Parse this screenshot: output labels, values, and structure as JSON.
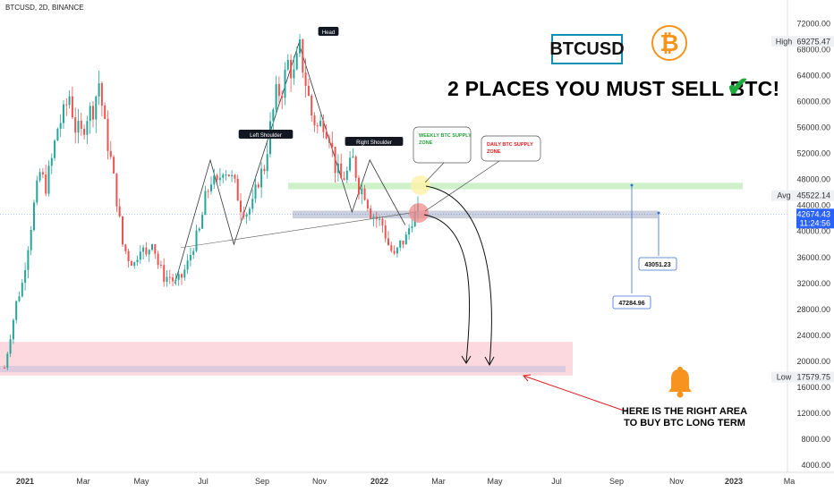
{
  "header": {
    "symbol": "BTCUSD, 2D, BINANCE"
  },
  "badge": {
    "label": "BTCUSD"
  },
  "logo": {
    "glyph": "₿",
    "color": "#f7931a"
  },
  "headline": {
    "text": "2 PLACES YOU MUST SELL BTC!",
    "check": "✔"
  },
  "callout": {
    "line1": "HERE IS THE RIGHT AREA",
    "line2": "TO BUY BTC LONG TERM"
  },
  "chart_data": {
    "type": "candlestick",
    "title": "BTCUSD, 2D, BINANCE",
    "ylim": [
      4000,
      74000
    ],
    "y_ticks": [
      "72000.00",
      "68000.00",
      "64000.00",
      "60000.00",
      "56000.00",
      "52000.00",
      "48000.00",
      "44000.00",
      "40000.00",
      "36000.00",
      "32000.00",
      "28000.00",
      "24000.00",
      "20000.00",
      "16000.00",
      "12000.00",
      "8000.00",
      "4000.00"
    ],
    "x_ticks": [
      "2021",
      "Mar",
      "May",
      "Jul",
      "Sep",
      "Nov",
      "2022",
      "Mar",
      "May",
      "Jul",
      "Sep",
      "Nov",
      "2023",
      "Ma"
    ],
    "price_tags": [
      {
        "label": "High",
        "value": "69275.47"
      },
      {
        "label": "Avg",
        "value": "45522.14"
      },
      {
        "label": "",
        "value": "42674.43",
        "sub": "11:24:56"
      },
      {
        "label": "Low",
        "value": "17579.75"
      }
    ],
    "pattern_labels": [
      "Head",
      "Left Shoulder",
      "Right Shoulder"
    ],
    "annotations": [
      {
        "text": "WEEKLY BTC SUPPLY ZONE",
        "color": "#2a9d3a"
      },
      {
        "text": "DAILY BTC SUPPLY ZONE",
        "color": "#e01b1b"
      }
    ],
    "measurements": [
      "47284.96",
      "43051.23"
    ],
    "zones": [
      {
        "name": "weekly supply",
        "from": 46500,
        "to": 47500,
        "color": "#c9f0c6"
      },
      {
        "name": "daily supply",
        "from": 42000,
        "to": 43200,
        "color": "#c5cbd8"
      },
      {
        "name": "buy zone",
        "from": 17800,
        "to": 23000,
        "color": "#fbd5dc"
      }
    ],
    "path": [
      [
        0,
        19000
      ],
      [
        2,
        24000
      ],
      [
        4,
        29000
      ],
      [
        6,
        32000
      ],
      [
        8,
        38000
      ],
      [
        10,
        44000
      ],
      [
        12,
        49000
      ],
      [
        14,
        47000
      ],
      [
        16,
        51000
      ],
      [
        18,
        56000
      ],
      [
        20,
        58000
      ],
      [
        22,
        61000
      ],
      [
        24,
        56000
      ],
      [
        26,
        55000
      ],
      [
        28,
        58000
      ],
      [
        30,
        59000
      ],
      [
        32,
        63000
      ],
      [
        34,
        56000
      ],
      [
        36,
        51000
      ],
      [
        38,
        45000
      ],
      [
        40,
        38000
      ],
      [
        42,
        36000
      ],
      [
        44,
        35000
      ],
      [
        46,
        38000
      ],
      [
        48,
        36000
      ],
      [
        50,
        39000
      ],
      [
        52,
        35000
      ],
      [
        54,
        33000
      ],
      [
        56,
        33000
      ],
      [
        58,
        32000
      ],
      [
        60,
        33000
      ],
      [
        62,
        35000
      ],
      [
        64,
        38000
      ],
      [
        66,
        40000
      ],
      [
        68,
        45000
      ],
      [
        70,
        48000
      ],
      [
        72,
        47000
      ],
      [
        74,
        50000
      ],
      [
        76,
        49000
      ],
      [
        78,
        47000
      ],
      [
        80,
        44000
      ],
      [
        82,
        43000
      ],
      [
        84,
        44000
      ],
      [
        86,
        48000
      ],
      [
        88,
        50000
      ],
      [
        90,
        56000
      ],
      [
        92,
        61000
      ],
      [
        94,
        62000
      ],
      [
        96,
        66000
      ],
      [
        98,
        64000
      ],
      [
        100,
        68000
      ],
      [
        102,
        63000
      ],
      [
        104,
        58000
      ],
      [
        106,
        56000
      ],
      [
        108,
        57000
      ],
      [
        110,
        55000
      ],
      [
        112,
        50000
      ],
      [
        114,
        48000
      ],
      [
        116,
        49000
      ],
      [
        118,
        51000
      ],
      [
        120,
        47000
      ],
      [
        122,
        46000
      ],
      [
        124,
        43000
      ],
      [
        126,
        42000
      ],
      [
        128,
        41000
      ],
      [
        130,
        38000
      ],
      [
        132,
        36000
      ],
      [
        134,
        38000
      ],
      [
        136,
        39000
      ],
      [
        138,
        42000
      ],
      [
        140,
        43000
      ]
    ]
  }
}
